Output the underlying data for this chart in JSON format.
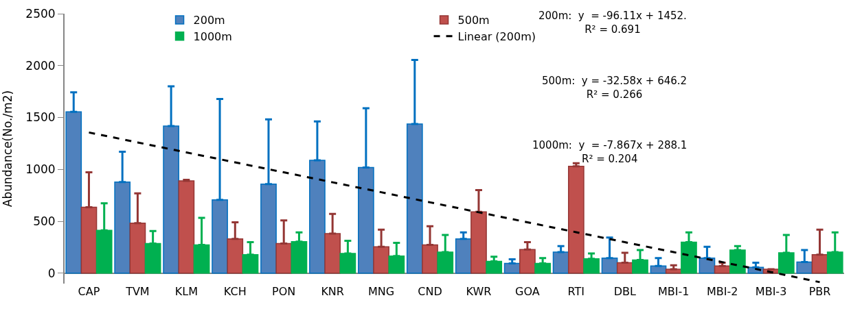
{
  "chart_data": {
    "type": "bar",
    "ylabel": "Abundance(No./m2)",
    "categories": [
      "CAP",
      "TVM",
      "KLM",
      "KCH",
      "PON",
      "KNR",
      "MNG",
      "CND",
      "KWR",
      "GOA",
      "RTI",
      "DBL",
      "MBI-1",
      "MBI-2",
      "MBI-3",
      "PBR"
    ],
    "series": [
      {
        "name": "200m",
        "color": "#4f81bd",
        "values": [
          1555,
          878,
          1418,
          706,
          859,
          1088,
          1018,
          1437,
          331,
          95,
          204,
          146,
          70,
          146,
          57,
          108
        ],
        "errors": [
          [
            1555,
            1743
          ],
          [
            878,
            1170
          ],
          [
            1418,
            1800
          ],
          [
            706,
            1679
          ],
          [
            859,
            1482
          ],
          [
            1088,
            1463
          ],
          [
            1018,
            1590
          ],
          [
            1437,
            2054
          ],
          [
            331,
            394
          ],
          [
            95,
            134
          ],
          [
            204,
            261
          ],
          [
            146,
            343
          ],
          [
            70,
            146
          ],
          [
            146,
            254
          ],
          [
            57,
            102
          ],
          [
            108,
            223
          ]
        ]
      },
      {
        "name": "500m",
        "color": "#c0504d",
        "values": [
          636,
          483,
          890,
          331,
          286,
          381,
          254,
          273,
          591,
          229,
          1030,
          102,
          38,
          70,
          38,
          178
        ],
        "errors": [
          [
            636,
            973
          ],
          [
            483,
            770
          ],
          [
            890,
            900
          ],
          [
            331,
            490
          ],
          [
            286,
            509
          ],
          [
            381,
            572
          ],
          [
            254,
            420
          ],
          [
            273,
            452
          ],
          [
            591,
            801
          ],
          [
            229,
            299
          ],
          [
            1030,
            1060
          ],
          [
            102,
            197
          ],
          [
            38,
            76
          ],
          [
            70,
            102
          ],
          null,
          [
            178,
            420
          ]
        ]
      },
      {
        "name": "1000m",
        "color": "#00b050",
        "values": [
          413,
          286,
          273,
          178,
          305,
          191,
          165,
          204,
          114,
          95,
          140,
          127,
          299,
          223,
          197,
          204
        ],
        "errors": [
          [
            413,
            674
          ],
          [
            286,
            407
          ],
          [
            273,
            534
          ],
          [
            178,
            299
          ],
          [
            305,
            394
          ],
          [
            191,
            312
          ],
          [
            165,
            292
          ],
          [
            204,
            369
          ],
          [
            114,
            159
          ],
          [
            95,
            146
          ],
          [
            140,
            191
          ],
          [
            127,
            223
          ],
          [
            299,
            394
          ],
          [
            223,
            261
          ],
          [
            197,
            369
          ],
          [
            204,
            394
          ]
        ]
      },
      {
        "name": "Linear (200m)",
        "type": "line",
        "color": "#000000",
        "line_style": "dashed",
        "marker": "none",
        "values": [
          1356,
          1260,
          1164,
          1068,
          972,
          876,
          780,
          683,
          587,
          491,
          395,
          299,
          203,
          107,
          11,
          -86
        ]
      }
    ],
    "ylim": [
      -100,
      2500
    ],
    "yticks": [
      0,
      500,
      1000,
      1500,
      2000,
      2500
    ],
    "legend": "top left",
    "annotations": [
      "200m:  y  = -96.11x + 1452.\nR² = 0.691",
      "500m:  y = -32.58x + 646.2\nR² = 0.266",
      "1000m:  y  = -7.867x + 288.1\nR² = 0.204"
    ]
  }
}
